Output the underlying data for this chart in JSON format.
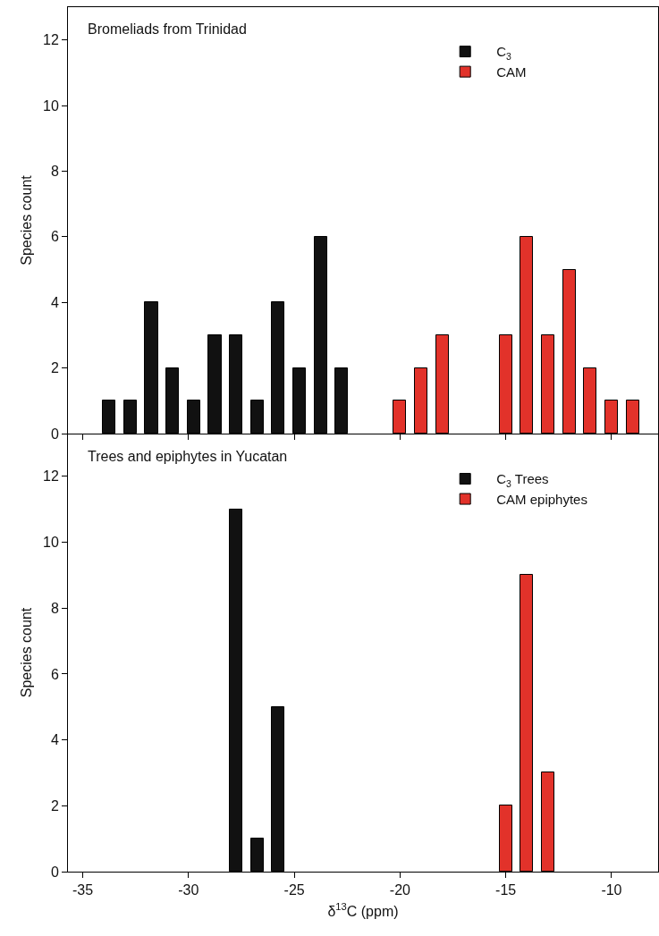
{
  "chart_data": [
    {
      "type": "bar",
      "title": "Bromeliads from Trinidad",
      "ylabel": "Species count",
      "xlim": [
        -35.7,
        -7.8
      ],
      "xticks": [
        -35,
        -30,
        -25,
        -20,
        -15,
        -10
      ],
      "ylim": [
        0,
        13
      ],
      "yticks": [
        0,
        2,
        4,
        6,
        8,
        10,
        12
      ],
      "tick_labels": "y",
      "grid": false,
      "legend": "top right",
      "series": [
        {
          "name": "C$_{3}$",
          "color": "#111111",
          "x": [
            -33.75,
            -32.75,
            -31.75,
            -30.75,
            -29.75,
            -28.75,
            -27.75,
            -26.75,
            -25.75,
            -24.75,
            -23.75,
            -22.75
          ],
          "values": [
            1,
            1,
            4,
            2,
            1,
            3,
            3,
            1,
            4,
            2,
            6,
            2
          ]
        },
        {
          "name": "CAM",
          "color": "#e2322a",
          "x": [
            -20,
            -19,
            -18,
            -15,
            -14,
            -13,
            -12,
            -11,
            -10,
            -9
          ],
          "values": [
            1,
            2,
            3,
            3,
            6,
            3,
            5,
            2,
            1,
            1
          ]
        }
      ]
    },
    {
      "type": "bar",
      "title": "Trees and epiphytes in Yucatan",
      "xlabel": "δ$^{13}$C (ppm)",
      "ylabel": "Species count",
      "xlim": [
        -35.7,
        -7.8
      ],
      "xticks": [
        -35,
        -30,
        -25,
        -20,
        -15,
        -10
      ],
      "ylim": [
        0,
        13.3
      ],
      "yticks": [
        0,
        2,
        4,
        6,
        8,
        10,
        12
      ],
      "grid": false,
      "legend": "top right",
      "series": [
        {
          "name": "C$_{3}$ Trees",
          "color": "#111111",
          "x": [
            -27.75,
            -26.75,
            -25.75
          ],
          "values": [
            11,
            1,
            5
          ]
        },
        {
          "name": "CAM epiphytes",
          "color": "#e2322a",
          "x": [
            -15,
            -14,
            -13
          ],
          "values": [
            2,
            9,
            3
          ]
        }
      ]
    }
  ]
}
